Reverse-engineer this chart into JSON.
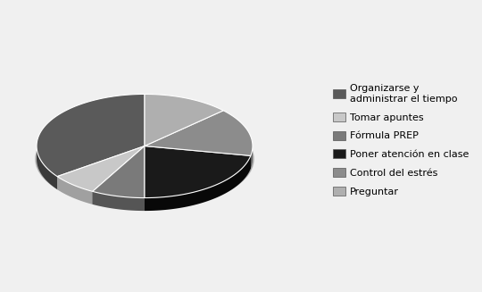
{
  "labels": [
    "Organizarse y\nadministrar el tiempo",
    "Tomar apuntes",
    "Fórmula PREP",
    "Poner atención en clase",
    "Control del estrés",
    "Preguntar"
  ],
  "values": [
    35,
    7,
    8,
    22,
    15,
    13
  ],
  "colors": [
    "#5a5a5a",
    "#c8c8c8",
    "#7a7a7a",
    "#1a1a1a",
    "#8c8c8c",
    "#afafaf"
  ],
  "dark_colors": [
    "#3a3a3a",
    "#a0a0a0",
    "#555555",
    "#080808",
    "#606060",
    "#888888"
  ],
  "edge_color": "#ffffff",
  "startangle": 90,
  "background_color": "#f0f0f0",
  "legend_fontsize": 8,
  "figsize": [
    5.4,
    3.27
  ],
  "dpi": 100,
  "depth": 0.12,
  "yscale": 0.48
}
